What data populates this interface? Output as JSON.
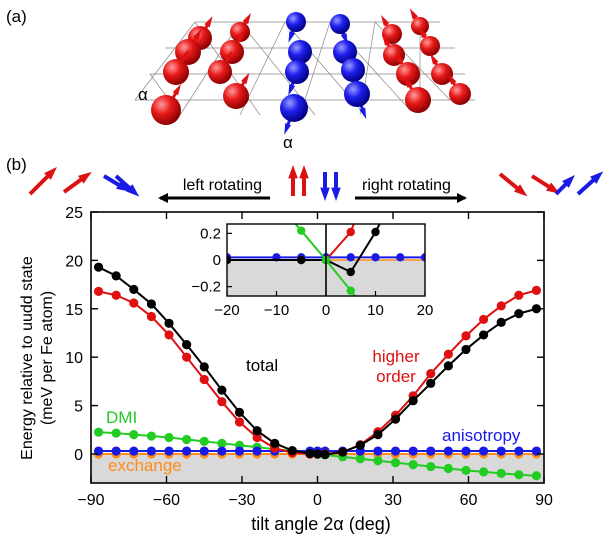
{
  "panel_labels": {
    "a": "(a)",
    "b": "(b)"
  },
  "lattice": {
    "alpha_left": "α",
    "alpha_bottom": "α",
    "colors": {
      "up": "#dd1111",
      "down": "#1a1ae6"
    }
  },
  "rotation": {
    "left_label": "left rotating",
    "right_label": "right rotating"
  },
  "chart_data": {
    "type": "line",
    "xlabel": "tilt angle 2α (deg)",
    "ylabel_line1": "Energy relative to uudd state",
    "ylabel_line2": "(meV per Fe atom)",
    "xlim": [
      -90,
      90
    ],
    "ylim": [
      -3,
      25
    ],
    "xticks": [
      -90,
      -60,
      -30,
      0,
      30,
      60,
      90
    ],
    "yticks": [
      0,
      5,
      10,
      15,
      20,
      25
    ],
    "grid": false,
    "shaded_below_zero": "#d9d9d9",
    "x": [
      -87,
      -80,
      -73,
      -66,
      -59,
      -52,
      -45,
      -38,
      -31,
      -24,
      -17,
      -10,
      -3,
      0,
      3,
      10,
      17,
      24,
      31,
      38,
      45,
      52,
      59,
      66,
      73,
      80,
      87
    ],
    "series": [
      {
        "name": "total",
        "color": "#000000",
        "values": [
          19.3,
          18.4,
          17.0,
          15.5,
          13.5,
          11.3,
          9.0,
          6.6,
          4.3,
          2.4,
          1.1,
          0.35,
          0.05,
          0.0,
          -0.05,
          0.2,
          0.9,
          2.0,
          3.6,
          5.5,
          7.3,
          9.1,
          10.8,
          12.3,
          13.6,
          14.5,
          15.0
        ]
      },
      {
        "name": "higher order",
        "color": "#e01010",
        "values": [
          16.8,
          16.4,
          15.6,
          14.2,
          12.3,
          10.0,
          7.7,
          5.4,
          3.3,
          1.7,
          0.6,
          0.12,
          0.0,
          0.0,
          0.0,
          0.2,
          0.95,
          2.3,
          4.0,
          6.0,
          8.3,
          10.3,
          12.2,
          13.9,
          15.3,
          16.4,
          16.9
        ]
      },
      {
        "name": "DMI",
        "color": "#22cc22",
        "values": [
          2.25,
          2.15,
          2.0,
          1.85,
          1.7,
          1.5,
          1.3,
          1.1,
          0.9,
          0.7,
          0.5,
          0.3,
          0.1,
          0.0,
          -0.1,
          -0.3,
          -0.5,
          -0.7,
          -0.9,
          -1.1,
          -1.3,
          -1.5,
          -1.7,
          -1.85,
          -2.0,
          -2.15,
          -2.25
        ]
      },
      {
        "name": "anisotropy",
        "color": "#1a1ae6",
        "values": [
          0.3,
          0.3,
          0.3,
          0.3,
          0.3,
          0.3,
          0.3,
          0.3,
          0.3,
          0.3,
          0.3,
          0.3,
          0.3,
          0.3,
          0.3,
          0.3,
          0.3,
          0.3,
          0.3,
          0.3,
          0.3,
          0.3,
          0.3,
          0.3,
          0.3,
          0.3,
          0.3
        ]
      },
      {
        "name": "exchange",
        "color": "#ff8c1a",
        "values": [
          0,
          0,
          0,
          0,
          0,
          0,
          0,
          0,
          0,
          0,
          0,
          0,
          0,
          0,
          0,
          0,
          0,
          0,
          0,
          0,
          0,
          0,
          0,
          0,
          0,
          0,
          0
        ]
      }
    ],
    "inset": {
      "xlim": [
        -20,
        20
      ],
      "ylim": [
        -0.27,
        0.27
      ],
      "xticks": [
        -20,
        -10,
        0,
        10,
        20
      ],
      "yticks": [
        -0.2,
        0,
        0.2
      ],
      "series": [
        {
          "name": "total",
          "color": "#000000",
          "x": [
            -20,
            -5,
            0,
            5,
            10
          ],
          "values": [
            0.0,
            0.0,
            0.0,
            -0.09,
            0.21
          ]
        },
        {
          "name": "higher order",
          "color": "#e01010",
          "x": [
            -20,
            -5,
            0,
            5
          ],
          "values": [
            0.0,
            0.0,
            0.0,
            0.21
          ]
        },
        {
          "name": "DMI",
          "color": "#22cc22",
          "x": [
            -5,
            0,
            5
          ],
          "values": [
            0.22,
            0.0,
            -0.23
          ]
        },
        {
          "name": "anisotropy",
          "color": "#1a1ae6",
          "x": [
            -20,
            -10,
            -5,
            0,
            5,
            10,
            15,
            20
          ],
          "values": [
            0.02,
            0.02,
            0.02,
            0.02,
            0.02,
            0.02,
            0.02,
            0.02
          ]
        }
      ]
    }
  }
}
